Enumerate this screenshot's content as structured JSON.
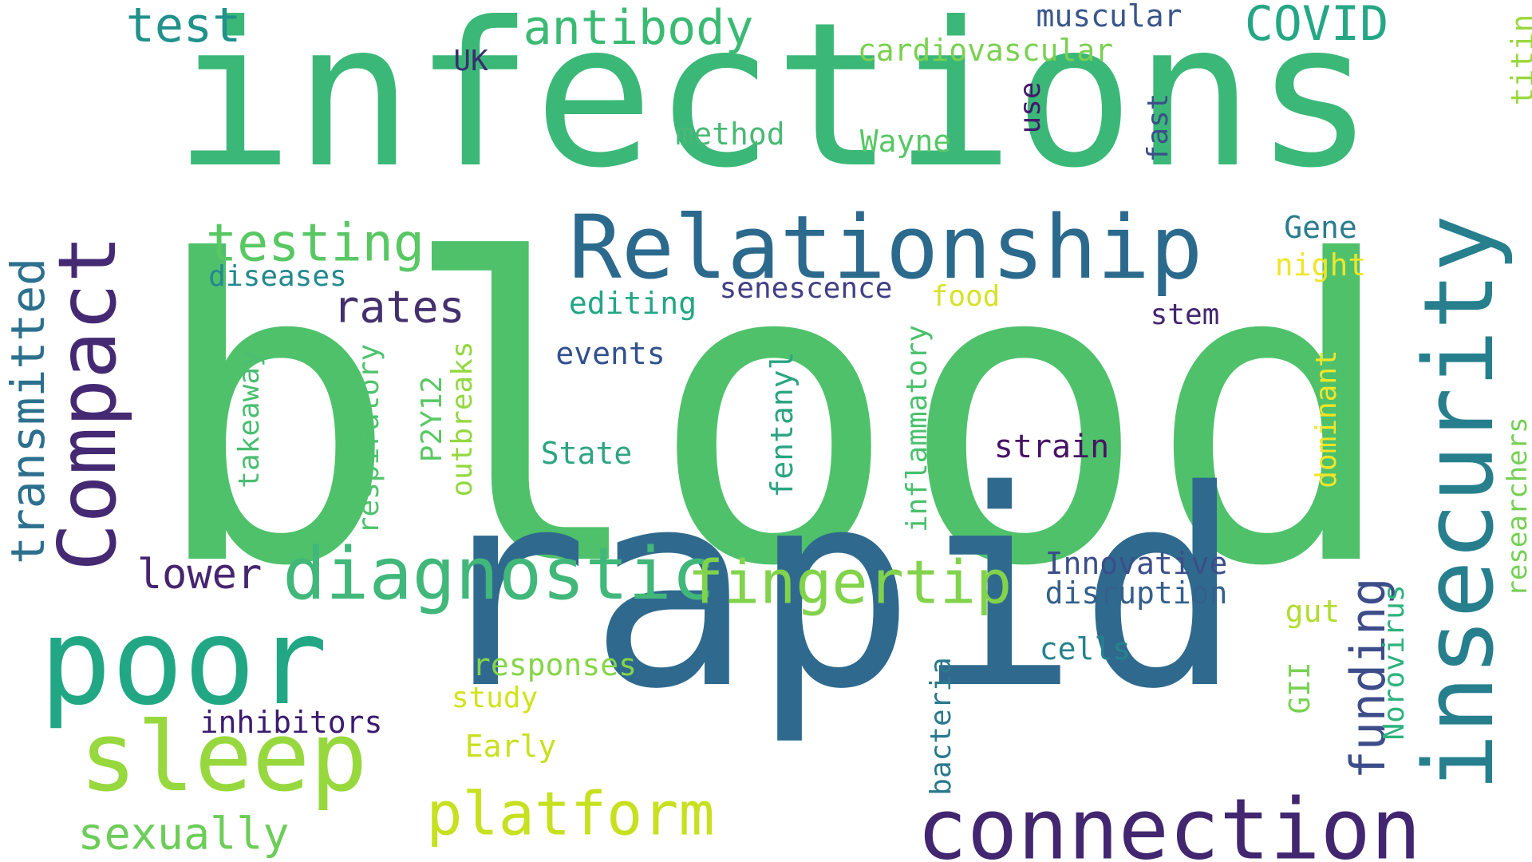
{
  "words": [
    {
      "text": "blood",
      "color": "#4fc16b"
    },
    {
      "text": "infections",
      "color": "#3bb878"
    },
    {
      "text": "rapid",
      "color": "#2f6a8e"
    },
    {
      "text": "Relationship",
      "color": "#2c6a8d"
    },
    {
      "text": "poor",
      "color": "#22a784"
    },
    {
      "text": "insecurity",
      "color": "#277f8e"
    },
    {
      "text": "connection",
      "color": "#42266f"
    },
    {
      "text": "sleep",
      "color": "#97d83e"
    },
    {
      "text": "Compact",
      "color": "#452a73"
    },
    {
      "text": "diagnostic",
      "color": "#41b77a"
    },
    {
      "text": "fingertip",
      "color": "#82d34c"
    },
    {
      "text": "platform",
      "color": "#c7e020"
    },
    {
      "text": "funding",
      "color": "#3d4d8a"
    },
    {
      "text": "transmitted",
      "color": "#2d708e"
    },
    {
      "text": "testing",
      "color": "#59c864"
    },
    {
      "text": "antibody",
      "color": "#3bba74"
    },
    {
      "text": "COVID",
      "color": "#25a785"
    },
    {
      "text": "test",
      "color": "#21918c"
    },
    {
      "text": "rates",
      "color": "#44306d"
    },
    {
      "text": "lower",
      "color": "#46256f"
    },
    {
      "text": "sexually",
      "color": "#6ccd59"
    },
    {
      "text": "muscular",
      "color": "#39568c"
    },
    {
      "text": "cardiovascular",
      "color": "#7ad151"
    },
    {
      "text": "UK",
      "color": "#3a2f6e"
    },
    {
      "text": "use",
      "color": "#46186e"
    },
    {
      "text": "method",
      "color": "#49b975"
    },
    {
      "text": "Wayne",
      "color": "#57c766"
    },
    {
      "text": "fast",
      "color": "#3c4f8a"
    },
    {
      "text": "titin",
      "color": "#9ad83f"
    },
    {
      "text": "Gene",
      "color": "#2a7c8e"
    },
    {
      "text": "night",
      "color": "#f0e52b"
    },
    {
      "text": "diseases",
      "color": "#23898e"
    },
    {
      "text": "senescence",
      "color": "#423f85"
    },
    {
      "text": "food",
      "color": "#d6e22b"
    },
    {
      "text": "editing",
      "color": "#22a685"
    },
    {
      "text": "stem",
      "color": "#44276f"
    },
    {
      "text": "events",
      "color": "#31508d"
    },
    {
      "text": "takeaway",
      "color": "#4bbe72"
    },
    {
      "text": "respiratory",
      "color": "#4ec36b"
    },
    {
      "text": "P2Y12",
      "color": "#5ac864"
    },
    {
      "text": "outbreaks",
      "color": "#93d840"
    },
    {
      "text": "State",
      "color": "#2ea483"
    },
    {
      "text": "fentanyl",
      "color": "#2ba482"
    },
    {
      "text": "inflammatory",
      "color": "#4ac16d"
    },
    {
      "text": "strain",
      "color": "#471365"
    },
    {
      "text": "dominant",
      "color": "#f3e527"
    },
    {
      "text": "researchers",
      "color": "#76d055"
    },
    {
      "text": "Innovative",
      "color": "#3b4e8a"
    },
    {
      "text": "disruption",
      "color": "#34608c"
    },
    {
      "text": "gut",
      "color": "#b0dd2f"
    },
    {
      "text": "cells",
      "color": "#26838d"
    },
    {
      "text": "GII",
      "color": "#79d152"
    },
    {
      "text": "Norovirus",
      "color": "#2db27d"
    },
    {
      "text": "bacteria",
      "color": "#2a788e"
    },
    {
      "text": "responses",
      "color": "#86d549"
    },
    {
      "text": "study",
      "color": "#d2e21b"
    },
    {
      "text": "inhibitors",
      "color": "#3b1c6f"
    },
    {
      "text": "Early",
      "color": "#c9e020"
    }
  ]
}
